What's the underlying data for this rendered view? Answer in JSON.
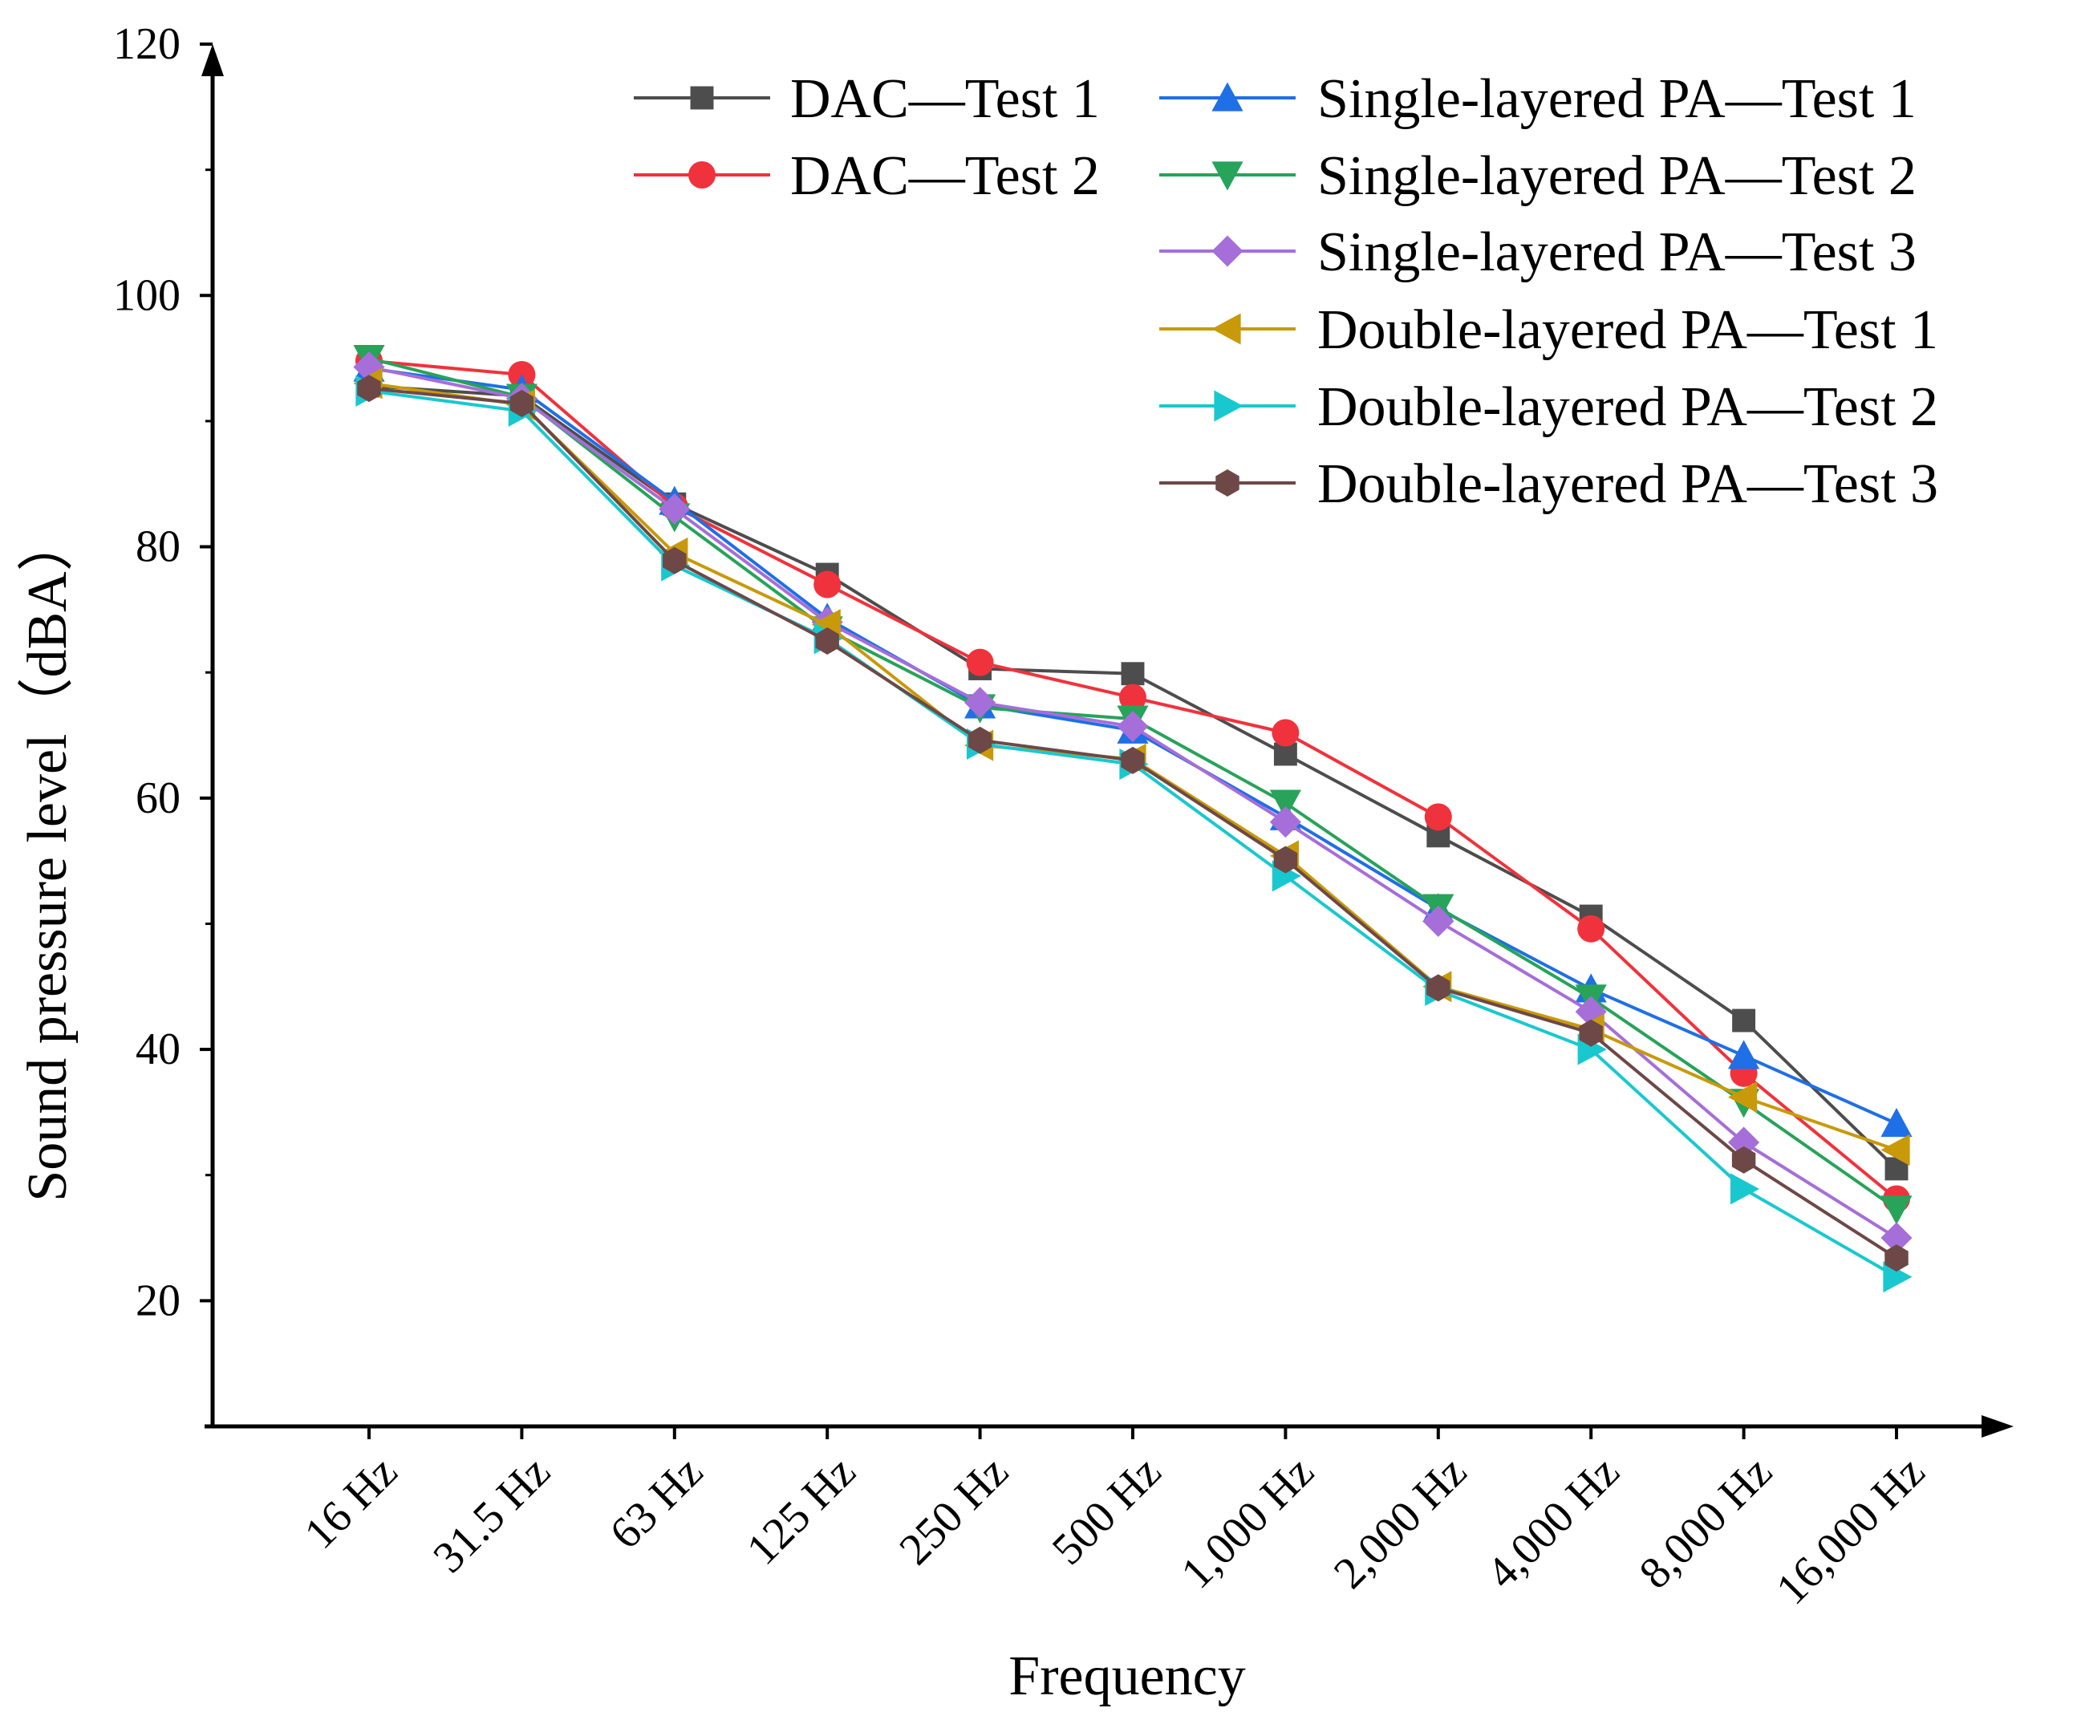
{
  "chart_data": {
    "type": "line",
    "title": "",
    "xlabel": "Frequency",
    "ylabel": "Sound pressure level（dBA）",
    "categories": [
      "16 Hz",
      "31.5 Hz",
      "63 Hz",
      "125 Hz",
      "250 Hz",
      "500 Hz",
      "1,000 Hz",
      "2,000 Hz",
      "4,000 Hz",
      "8,000 Hz",
      "16,000 Hz"
    ],
    "ylim": [
      10,
      120
    ],
    "yticks": [
      20,
      40,
      60,
      80,
      100,
      120
    ],
    "ytick_labels": [
      "20",
      "40",
      "60",
      "80",
      "100",
      "120"
    ],
    "legend_position": "top-right",
    "series": [
      {
        "name": "DAC—Test 1",
        "color": "#4d4d4d",
        "marker": "square",
        "values": [
          92.8,
          92.0,
          83.4,
          77.8,
          70.3,
          69.9,
          63.5,
          57.0,
          50.6,
          42.3,
          30.5
        ]
      },
      {
        "name": "DAC—Test 2",
        "color": "#f0323c",
        "marker": "circle",
        "values": [
          94.8,
          93.7,
          83.2,
          77.0,
          70.8,
          68.0,
          65.2,
          58.5,
          49.6,
          38.1,
          28.1
        ]
      },
      {
        "name": "Single-layered PA—Test 1",
        "color": "#1f6fe6",
        "marker": "triangle-up",
        "values": [
          94.2,
          92.5,
          83.6,
          74.3,
          67.4,
          65.4,
          58.5,
          51.2,
          44.8,
          39.5,
          34.1
        ]
      },
      {
        "name": "Single-layered PA—Test 2",
        "color": "#27a35a",
        "marker": "triangle-down",
        "values": [
          95.0,
          91.9,
          82.4,
          73.4,
          67.2,
          66.3,
          59.6,
          51.3,
          44.1,
          35.8,
          27.3
        ]
      },
      {
        "name": "Single-layered PA—Test 3",
        "color": "#a66ed8",
        "marker": "diamond",
        "values": [
          94.3,
          91.8,
          83.0,
          74.0,
          67.6,
          65.7,
          58.1,
          50.2,
          43.0,
          32.6,
          25.0
        ]
      },
      {
        "name": "Double-layered PA—Test 1",
        "color": "#c89a0a",
        "marker": "triangle-left",
        "values": [
          93.0,
          91.3,
          79.5,
          73.8,
          64.2,
          63.1,
          55.4,
          45.0,
          41.6,
          36.2,
          32.0
        ]
      },
      {
        "name": "Double-layered PA—Test 2",
        "color": "#19c8cf",
        "marker": "triangle-right",
        "values": [
          92.4,
          90.8,
          78.5,
          72.7,
          64.3,
          62.7,
          53.8,
          44.7,
          40.0,
          28.9,
          21.9
        ]
      },
      {
        "name": "Double-layered PA—Test 3",
        "color": "#6e4846",
        "marker": "hexagon",
        "values": [
          92.6,
          91.4,
          78.9,
          72.5,
          64.6,
          63.0,
          55.1,
          44.9,
          41.3,
          31.2,
          23.4
        ]
      }
    ]
  }
}
